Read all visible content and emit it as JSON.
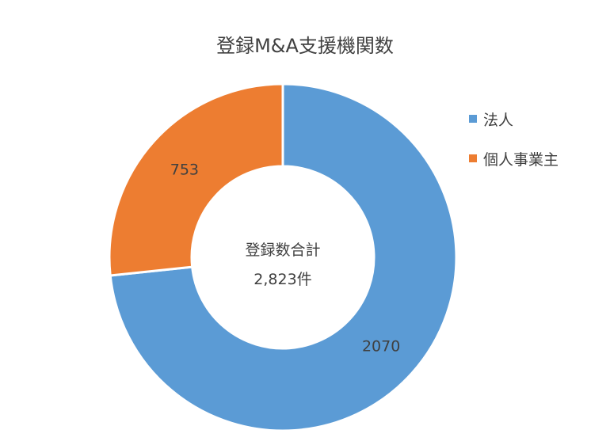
{
  "chart_data": {
    "type": "pie",
    "title": "登録M&A支援機関数",
    "series": [
      {
        "name": "法人",
        "value": 2070,
        "color": "#5B9BD5"
      },
      {
        "name": "個人事業主",
        "value": 753,
        "color": "#ED7D31"
      }
    ],
    "center_label_line1": "登録数合計",
    "center_label_line2": "2,823件",
    "legend_position": "right",
    "donut": true
  }
}
